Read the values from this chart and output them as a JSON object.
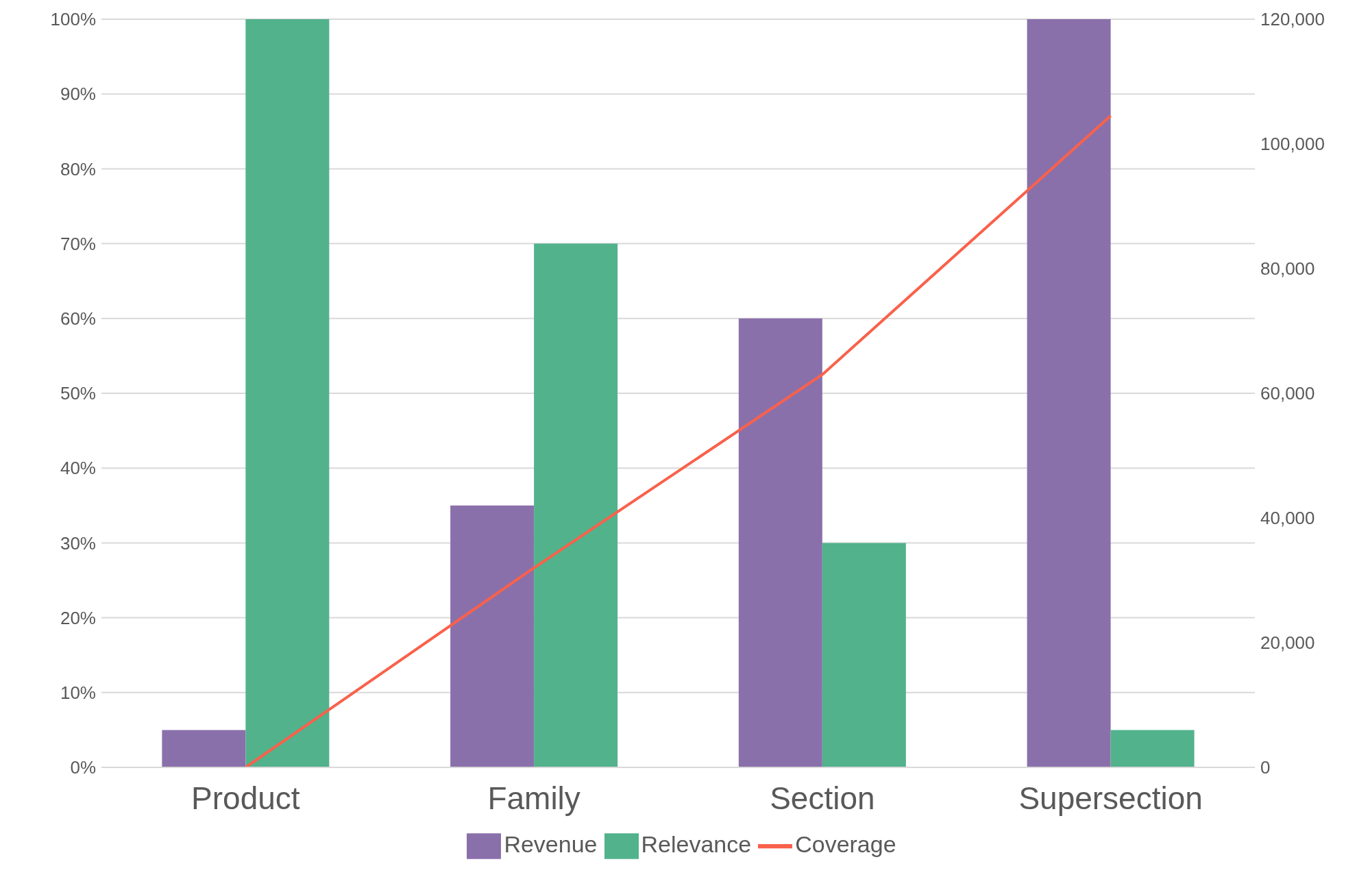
{
  "chart_data": {
    "type": "bar",
    "categories": [
      "Product",
      "Family",
      "Section",
      "Supersection"
    ],
    "series": [
      {
        "name": "Revenue",
        "color": "#8a70ab",
        "values": [
          5,
          35,
          60,
          100
        ]
      },
      {
        "name": "Relevance",
        "color": "#52b28c",
        "values": [
          100,
          70,
          30,
          5
        ]
      },
      {
        "name": "Coverage",
        "type": "line",
        "axis": "y2",
        "color": "#f9614b",
        "values": [
          0,
          32000,
          63000,
          104500
        ]
      }
    ],
    "ylim": [
      0,
      100
    ],
    "yticks": [
      {
        "value": 0,
        "label": "0%"
      },
      {
        "value": 10,
        "label": "10%"
      },
      {
        "value": 20,
        "label": "20%"
      },
      {
        "value": 30,
        "label": "30%"
      },
      {
        "value": 40,
        "label": "40%"
      },
      {
        "value": 50,
        "label": "50%"
      },
      {
        "value": 60,
        "label": "60%"
      },
      {
        "value": 70,
        "label": "70%"
      },
      {
        "value": 80,
        "label": "80%"
      },
      {
        "value": 90,
        "label": "90%"
      },
      {
        "value": 100,
        "label": "100%"
      }
    ],
    "y2lim": [
      0,
      120000
    ],
    "y2ticks": [
      0,
      {
        "value": 20000,
        "label": "20,000"
      },
      {
        "value": 40000,
        "label": "40,000"
      },
      {
        "value": 60000,
        "label": "60,000"
      },
      {
        "value": 80000,
        "label": "80,000"
      },
      {
        "value": 100000,
        "label": "100,000"
      },
      {
        "value": 120000,
        "label": "120,000"
      }
    ],
    "grid": "y",
    "legend": "bottom",
    "marker": "none",
    "line_style": "solid"
  }
}
